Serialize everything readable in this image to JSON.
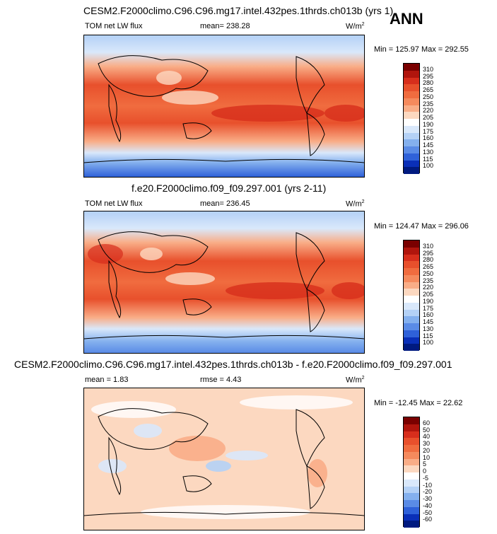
{
  "season": "ANN",
  "panels": [
    {
      "title": "CESM2.F2000climo.C96.C96.mg17.intel.432pes.1thrds.ch013b (yrs 1)",
      "left": "TOM net LW flux",
      "middle": "mean= 238.28",
      "units": "W/m",
      "units_sup": "2",
      "minmax": "Min = 125.97 Max = 292.55",
      "levels": [
        "310",
        "295",
        "280",
        "265",
        "250",
        "235",
        "220",
        "205",
        "190",
        "175",
        "160",
        "145",
        "130",
        "115",
        "100"
      ],
      "colors": [
        "#7a0000",
        "#b0150d",
        "#d72e1c",
        "#e8502c",
        "#f06c3f",
        "#f58a5d",
        "#f9ad87",
        "#fcd8c0",
        "#ffffff",
        "#d9e8fb",
        "#b4d1f6",
        "#84b0ee",
        "#5a8be6",
        "#2f61d9",
        "#0a2fb8",
        "#001a80"
      ]
    },
    {
      "title": "f.e20.F2000climo.f09_f09.297.001 (yrs 2-11)",
      "left": "TOM net LW flux",
      "middle": "mean= 236.45",
      "units": "W/m",
      "units_sup": "2",
      "minmax": "Min = 124.47 Max = 296.06",
      "levels": [
        "310",
        "295",
        "280",
        "265",
        "250",
        "235",
        "220",
        "205",
        "190",
        "175",
        "160",
        "145",
        "130",
        "115",
        "100"
      ],
      "colors": [
        "#7a0000",
        "#b0150d",
        "#d72e1c",
        "#e8502c",
        "#f06c3f",
        "#f58a5d",
        "#f9ad87",
        "#fcd8c0",
        "#ffffff",
        "#d9e8fb",
        "#b4d1f6",
        "#84b0ee",
        "#5a8be6",
        "#2f61d9",
        "#0a2fb8",
        "#001a80"
      ]
    },
    {
      "title": "CESM2.F2000climo.C96.C96.mg17.intel.432pes.1thrds.ch013b - f.e20.F2000climo.f09_f09.297.001",
      "left": "mean =   1.83",
      "middle": "rmse =   4.43",
      "units": "W/m",
      "units_sup": "2",
      "minmax": "Min = -12.45 Max =  22.62",
      "levels": [
        "60",
        "50",
        "40",
        "30",
        "20",
        "10",
        "5",
        "0",
        "-5",
        "-10",
        "-20",
        "-30",
        "-40",
        "-50",
        "-60"
      ],
      "colors": [
        "#7a0000",
        "#b0150d",
        "#d72e1c",
        "#e8502c",
        "#f06c3f",
        "#f58a5d",
        "#f9ad87",
        "#fcd8c0",
        "#ffffff",
        "#d9e8fb",
        "#b4d1f6",
        "#84b0ee",
        "#5a8be6",
        "#2f61d9",
        "#0a2fb8",
        "#001a80"
      ]
    }
  ]
}
